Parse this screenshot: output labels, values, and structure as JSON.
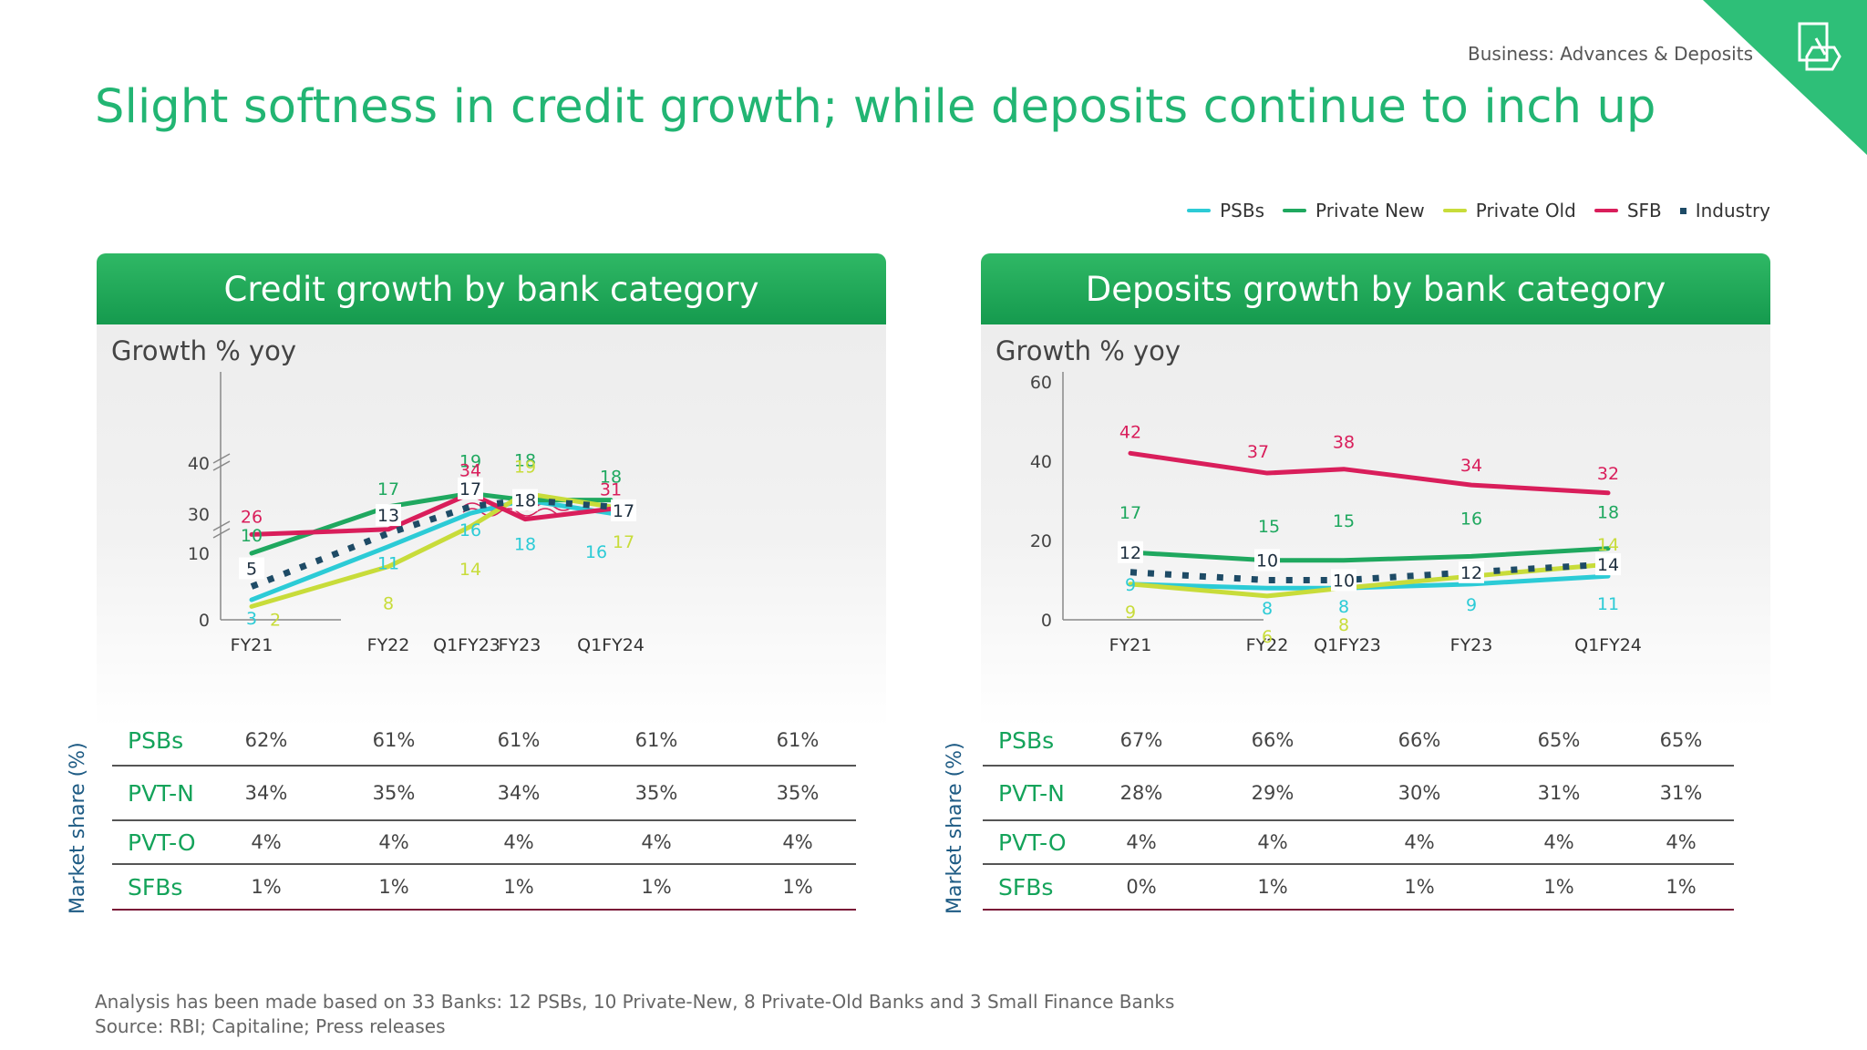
{
  "header": {
    "section": "Business: Advances & Deposits",
    "title": "Slight softness in credit growth; while deposits continue to inch up"
  },
  "legend": [
    {
      "name": "PSBs",
      "color": "#2ccbd6",
      "style": "line"
    },
    {
      "name": "Private New",
      "color": "#1fa85f",
      "style": "line"
    },
    {
      "name": "Private Old",
      "color": "#c8dc3a",
      "style": "line"
    },
    {
      "name": "SFB",
      "color": "#d91e5b",
      "style": "line"
    },
    {
      "name": "Industry",
      "color": "#1e4b66",
      "style": "dotted"
    }
  ],
  "chart_data": [
    {
      "type": "line",
      "title": "Credit growth by bank category",
      "ylabel": "Growth % yoy",
      "x": [
        "FY21",
        "FY22",
        "Q1FY23",
        "FY23",
        "Q1FY24"
      ],
      "yticks": [
        0,
        10,
        30,
        40
      ],
      "ylim": [
        0,
        40
      ],
      "axis_break": true,
      "series": [
        {
          "name": "PSBs",
          "values": [
            3,
            11,
            16,
            18,
            16
          ]
        },
        {
          "name": "Private New",
          "values": [
            10,
            17,
            19,
            18,
            18
          ]
        },
        {
          "name": "Private Old",
          "values": [
            2,
            8,
            14,
            19,
            17
          ]
        },
        {
          "name": "SFB",
          "values": [
            26,
            27,
            34,
            29,
            31
          ]
        },
        {
          "name": "Industry",
          "values": [
            5,
            13,
            17,
            18,
            17
          ]
        }
      ],
      "market_share": {
        "axis_label": "Market share (%)",
        "rows": [
          {
            "name": "PSBs",
            "values": [
              "62%",
              "61%",
              "61%",
              "61%",
              "61%"
            ]
          },
          {
            "name": "PVT-N",
            "values": [
              "34%",
              "35%",
              "34%",
              "35%",
              "35%"
            ]
          },
          {
            "name": "PVT-O",
            "values": [
              "4%",
              "4%",
              "4%",
              "4%",
              "4%"
            ]
          },
          {
            "name": "SFBs",
            "values": [
              "1%",
              "1%",
              "1%",
              "1%",
              "1%"
            ]
          }
        ]
      }
    },
    {
      "type": "line",
      "title": "Deposits growth by bank category",
      "ylabel": "Growth % yoy",
      "x": [
        "FY21",
        "FY22",
        "Q1FY23",
        "FY23",
        "Q1FY24"
      ],
      "yticks": [
        0,
        20,
        40,
        60
      ],
      "ylim": [
        0,
        60
      ],
      "series": [
        {
          "name": "PSBs",
          "values": [
            9,
            8,
            8,
            9,
            11
          ]
        },
        {
          "name": "Private New",
          "values": [
            17,
            15,
            15,
            16,
            18
          ]
        },
        {
          "name": "Private Old",
          "values": [
            9,
            6,
            8,
            11,
            14
          ]
        },
        {
          "name": "SFB",
          "values": [
            42,
            37,
            38,
            34,
            32
          ]
        },
        {
          "name": "Industry",
          "values": [
            12,
            10,
            10,
            12,
            14
          ]
        }
      ],
      "market_share": {
        "axis_label": "Market share (%)",
        "rows": [
          {
            "name": "PSBs",
            "values": [
              "67%",
              "66%",
              "66%",
              "65%",
              "65%"
            ]
          },
          {
            "name": "PVT-N",
            "values": [
              "28%",
              "29%",
              "30%",
              "31%",
              "31%"
            ]
          },
          {
            "name": "PVT-O",
            "values": [
              "4%",
              "4%",
              "4%",
              "4%",
              "4%"
            ]
          },
          {
            "name": "SFBs",
            "values": [
              "0%",
              "1%",
              "1%",
              "1%",
              "1%"
            ]
          }
        ]
      }
    }
  ],
  "footnotes": [
    "Analysis has been made based on 33 Banks: 12 PSBs, 10 Private-New, 8 Private-Old Banks and 3 Small Finance Banks",
    "Source: RBI; Capitaline; Press releases"
  ]
}
